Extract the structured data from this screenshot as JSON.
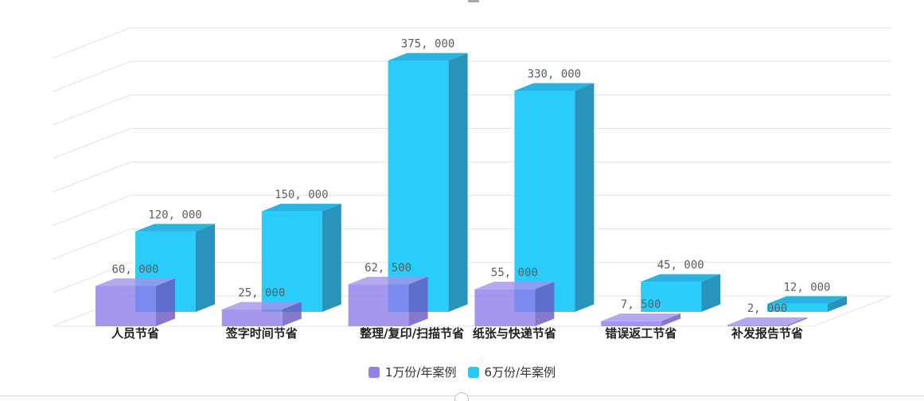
{
  "chart_data": {
    "type": "bar",
    "projection": "3d",
    "title": "",
    "xlabel": "",
    "ylabel": "",
    "categories": [
      "人员节省",
      "签字时间节省",
      "整理/复印/扫描节省",
      "纸张与快递节省",
      "错误返工节省",
      "补发报告节省"
    ],
    "series": [
      {
        "name": "1万份/年案例",
        "values": [
          60000,
          25000,
          62500,
          55000,
          7500,
          2000
        ],
        "labels": [
          "60, 000",
          "25, 000",
          "62, 500",
          "55, 000",
          "7, 500",
          "2, 000"
        ],
        "color": "#9180E8",
        "faces": {
          "front": "#8F7CEA",
          "top": "#A493EC",
          "side": "#6A57C0"
        },
        "opacity": 0.8
      },
      {
        "name": "6万份/年案例",
        "values": [
          120000,
          150000,
          375000,
          330000,
          45000,
          12000
        ],
        "labels": [
          "120, 000",
          "150, 000",
          "375, 000",
          "330, 000",
          "45, 000",
          "12, 000"
        ],
        "color": "#2BC7F4",
        "faces": {
          "front": "#2ACCFA",
          "top": "#27B4E0",
          "side": "#2A93BB"
        },
        "opacity": 1
      }
    ],
    "ylim": [
      0,
      400000
    ],
    "grid_step": 50000,
    "grid": true,
    "legend_position": "bottom",
    "value_label_color": "#5B5E61",
    "category_label_color": "#222222",
    "grid_color": "#E1E3E4"
  }
}
